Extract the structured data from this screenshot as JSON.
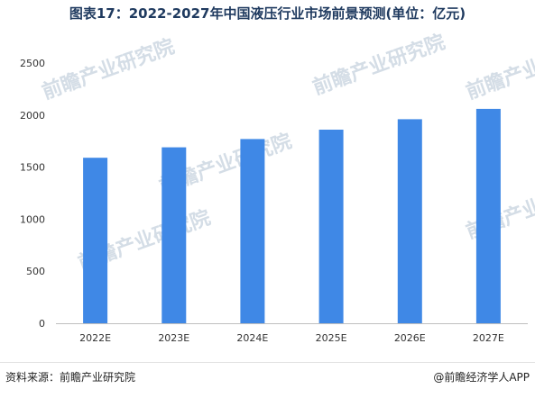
{
  "chart_data": {
    "type": "bar",
    "title": "图表17：2022-2027年中国液压行业市场前景预测(单位：亿元)",
    "categories": [
      "2022E",
      "2023E",
      "2024E",
      "2025E",
      "2026E",
      "2027E"
    ],
    "series": [
      {
        "values": [
          1590,
          1690,
          1770,
          1860,
          1960,
          2060
        ]
      }
    ],
    "yticks": [
      0,
      500,
      1000,
      1500,
      2000,
      2500
    ],
    "ylim": [
      0,
      2500
    ],
    "xlabel": "",
    "ylabel": "",
    "grid": false,
    "colors": {
      "bar": "#3f88e6",
      "axis": "#bfbfbf",
      "tick_text": "#333333"
    }
  },
  "footer": {
    "source": "资料来源：前瞻产业研究院",
    "brand": "@前瞻经济学人APP"
  },
  "watermark": "前瞻产业研究院"
}
